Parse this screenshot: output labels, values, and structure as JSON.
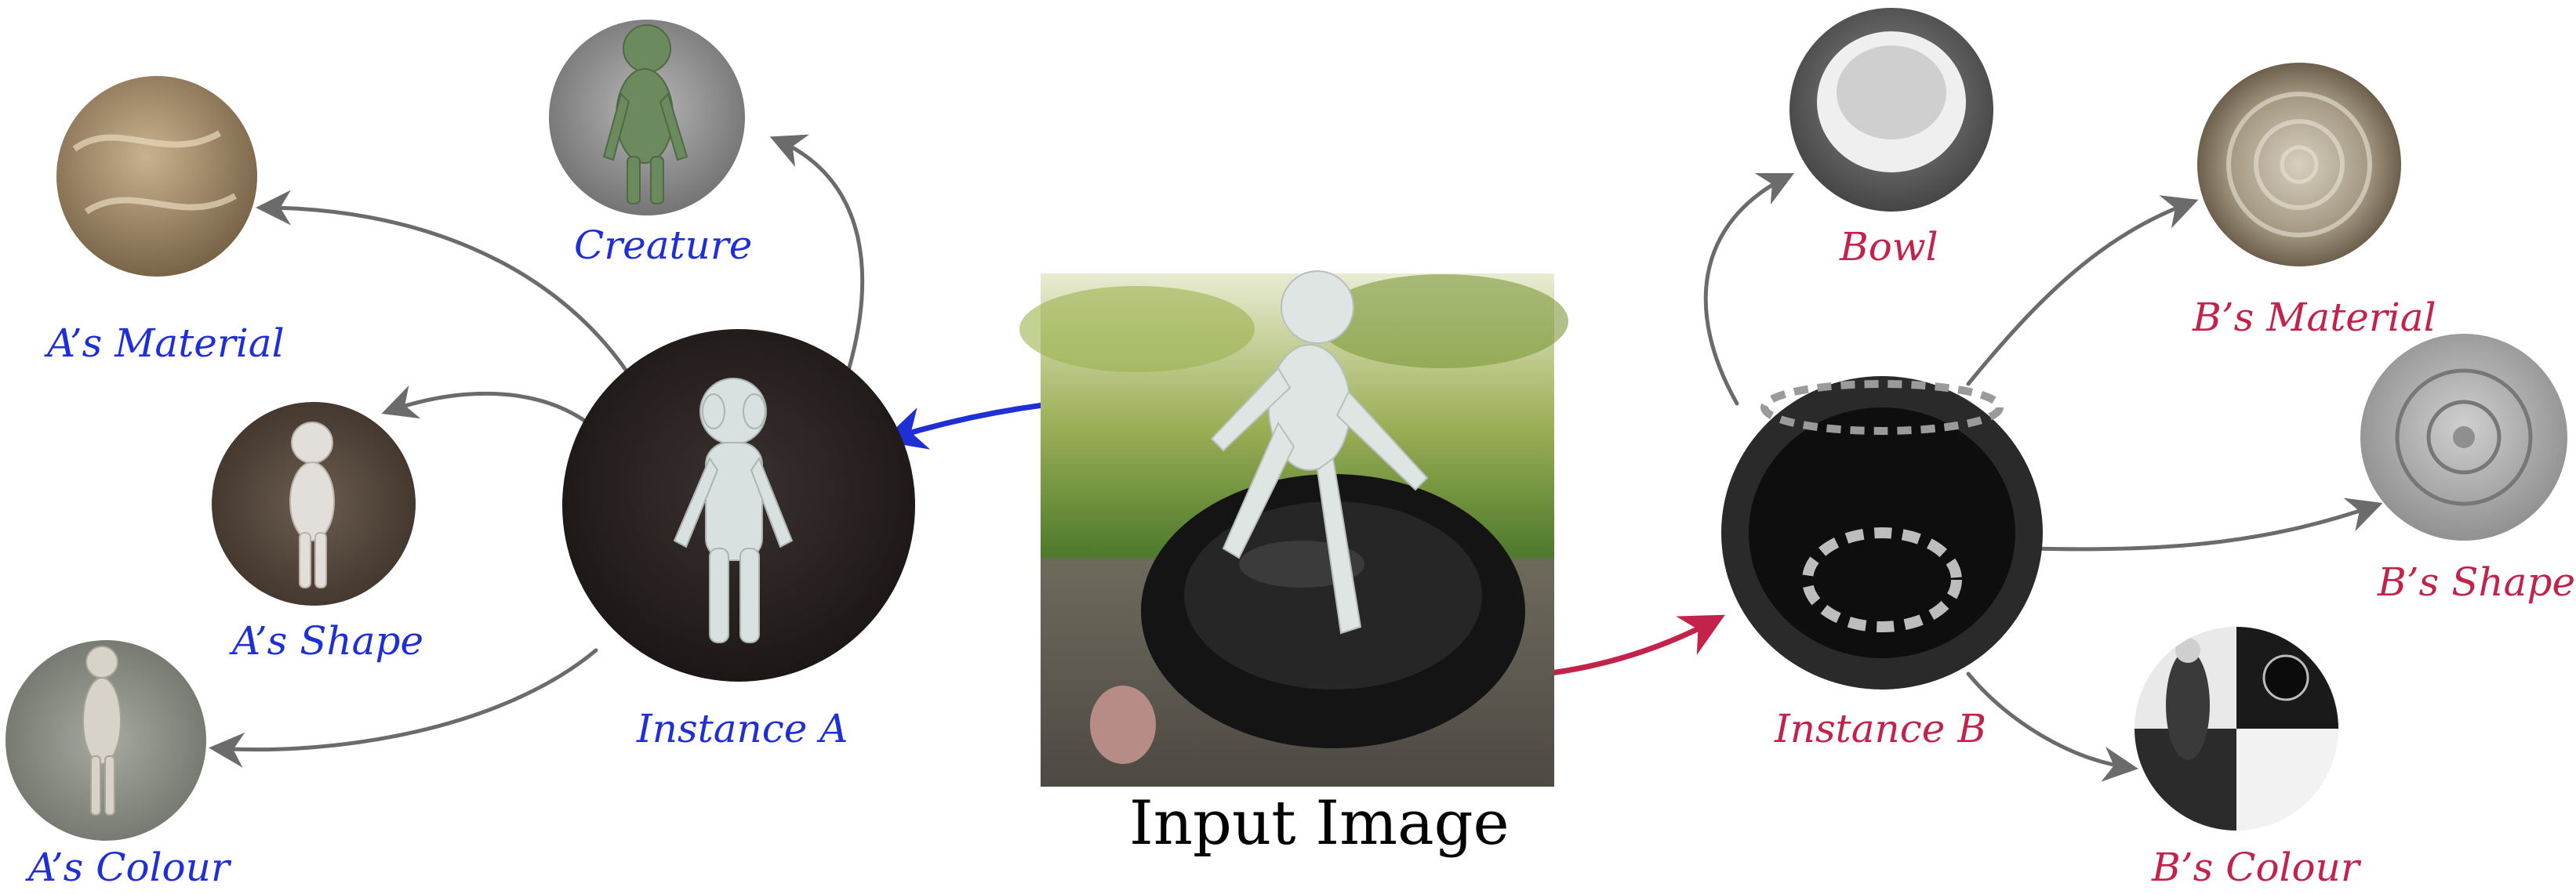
{
  "input": {
    "title": "Input Image"
  },
  "instances": {
    "a": {
      "label": "Instance A",
      "color": "#1f2fd6"
    },
    "b": {
      "label": "Instance B",
      "color": "#c3234a"
    }
  },
  "a_children": {
    "creature": "Creature",
    "material": "A’s Material",
    "shape": "A’s Shape",
    "colour": "A’s Colour"
  },
  "b_children": {
    "bowl": "Bowl",
    "material": "B’s Material",
    "shape": "B’s Shape",
    "colour": "B’s Colour"
  },
  "colors": {
    "arrow_gray": "#6b6b6b",
    "blue": "#1f2fd6",
    "red": "#c3234a"
  }
}
